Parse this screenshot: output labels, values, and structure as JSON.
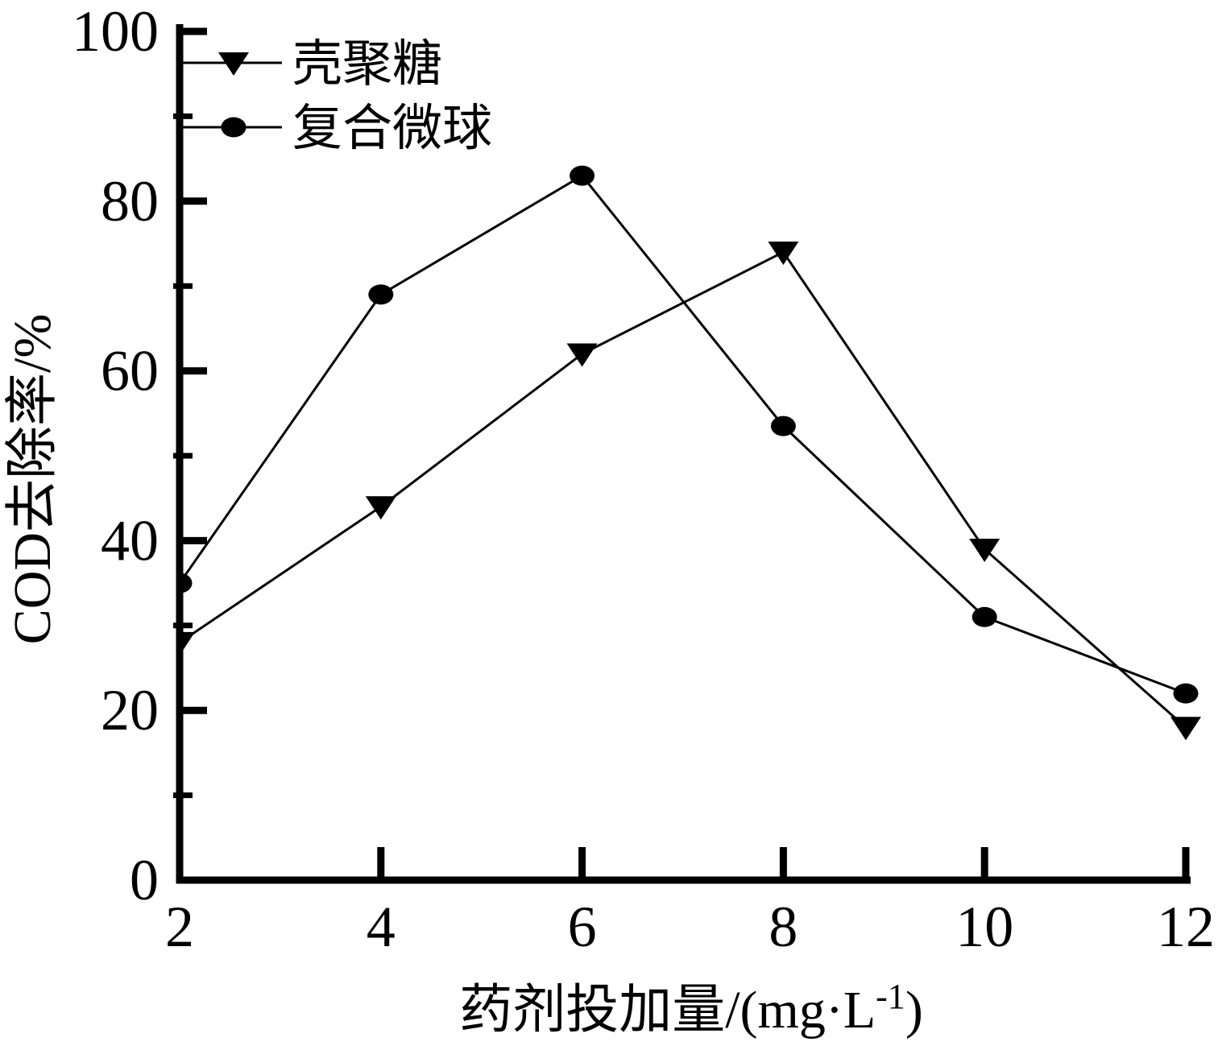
{
  "figure": {
    "background_color": "#ffffff",
    "ink_color": "#000000"
  },
  "chart_data": {
    "type": "line",
    "title": "",
    "xlabel": "药剂投加量/(mg·L⁻¹)",
    "xlabel_parts": {
      "prefix": "药剂投加量/(mg·L",
      "superscript": "-1",
      "suffix": ")"
    },
    "ylabel": "COD去除率/%",
    "x": [
      2,
      4,
      6,
      8,
      10,
      12
    ],
    "xlim": [
      2,
      12
    ],
    "ylim": [
      0,
      100
    ],
    "x_major_ticks": [
      2,
      4,
      6,
      8,
      10,
      12
    ],
    "x_tick_labels": [
      "2",
      "4",
      "6",
      "8",
      "10",
      "12"
    ],
    "y_major_ticks": [
      0,
      20,
      40,
      60,
      80,
      100
    ],
    "y_tick_labels": [
      "0",
      "20",
      "40",
      "60",
      "80",
      "100"
    ],
    "y_minor_ticks": [
      10,
      30,
      50,
      70,
      90
    ],
    "grid": "off",
    "legend_position": "top-left-inside",
    "series": [
      {
        "key": "chitosan",
        "name": "壳聚糖",
        "marker": "triangle-down",
        "color": "#000000",
        "values": [
          28,
          44,
          62,
          74,
          39,
          18
        ]
      },
      {
        "key": "composite-microsphere",
        "name": "复合微球",
        "marker": "circle",
        "color": "#000000",
        "values": [
          35,
          69,
          83,
          53.5,
          31,
          22
        ]
      }
    ]
  }
}
